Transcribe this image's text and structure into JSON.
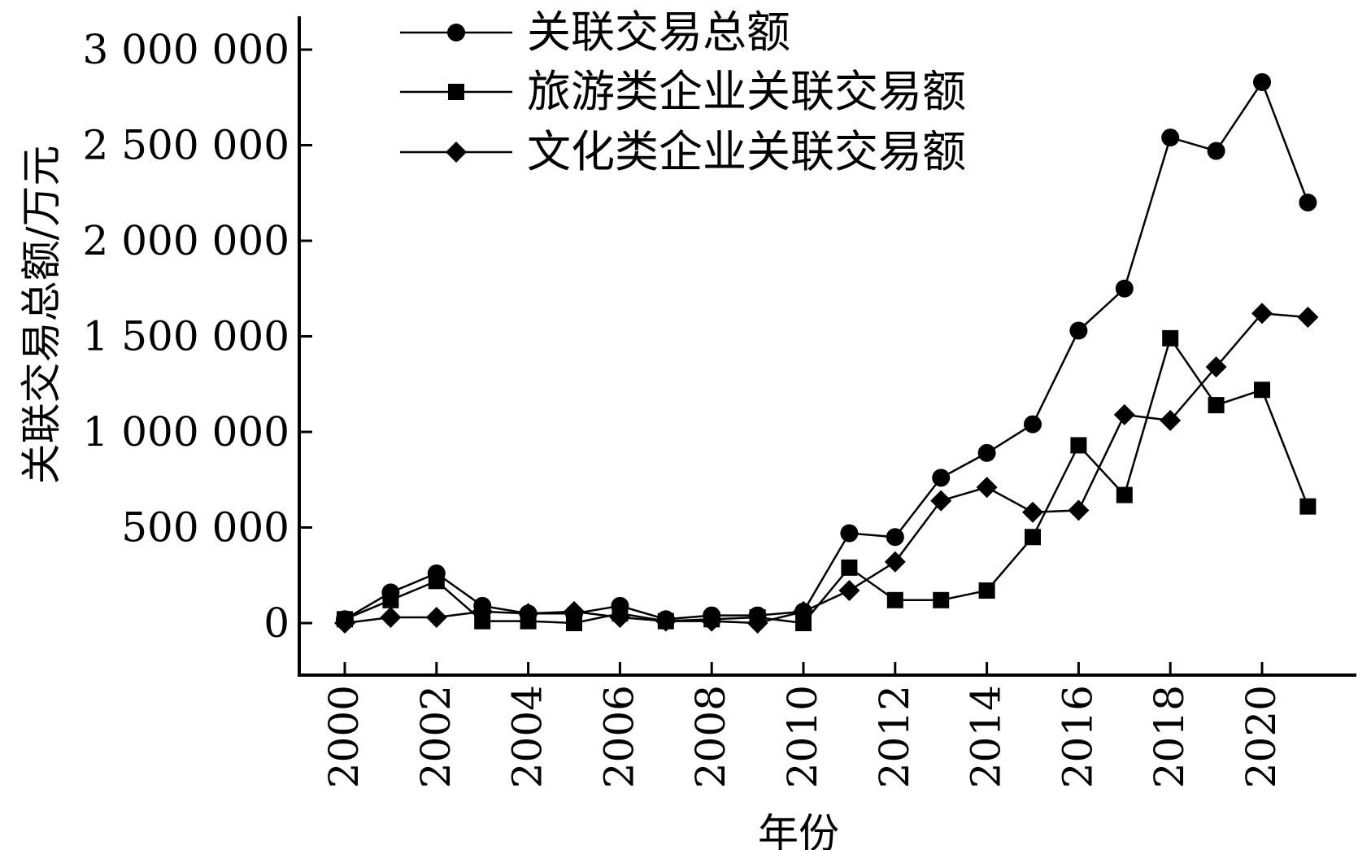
{
  "chart_data": {
    "type": "line",
    "title": "",
    "xlabel": "年份",
    "ylabel": "关联交易总额/万元",
    "x": [
      2000,
      2001,
      2002,
      2003,
      2004,
      2005,
      2006,
      2007,
      2008,
      2009,
      2010,
      2011,
      2012,
      2013,
      2014,
      2015,
      2016,
      2017,
      2018,
      2019,
      2020,
      2021
    ],
    "xticks": [
      "2000",
      "2002",
      "2004",
      "2006",
      "2008",
      "2010",
      "2012",
      "2014",
      "2016",
      "2018",
      "2020"
    ],
    "xlim": [
      2000,
      2022
    ],
    "ylim": [
      -250000,
      3150000
    ],
    "yticks": [
      {
        "value": 0,
        "label": "0"
      },
      {
        "value": 500000,
        "label": "500 000"
      },
      {
        "value": 1000000,
        "label": "1 000 000"
      },
      {
        "value": 1500000,
        "label": "1 500 000"
      },
      {
        "value": 2000000,
        "label": "2 000 000"
      },
      {
        "value": 2500000,
        "label": "2 500 000"
      },
      {
        "value": 3000000,
        "label": "3 000 000"
      }
    ],
    "grid": false,
    "legend_position": "top",
    "series": [
      {
        "name": "关联交易总额",
        "marker": "circle",
        "color": "#000000",
        "values": [
          20000,
          160000,
          260000,
          90000,
          50000,
          50000,
          90000,
          20000,
          40000,
          40000,
          60000,
          470000,
          450000,
          760000,
          890000,
          1040000,
          1530000,
          1750000,
          2540000,
          2470000,
          2830000,
          2200000
        ]
      },
      {
        "name": "旅游类企业关联交易额",
        "marker": "square",
        "color": "#000000",
        "values": [
          20000,
          120000,
          220000,
          10000,
          10000,
          0,
          50000,
          10000,
          20000,
          30000,
          0,
          290000,
          120000,
          120000,
          170000,
          450000,
          930000,
          670000,
          1490000,
          1140000,
          1220000,
          610000
        ]
      },
      {
        "name": "文化类企业关联交易额",
        "marker": "diamond",
        "color": "#000000",
        "values": [
          0,
          30000,
          30000,
          60000,
          50000,
          60000,
          30000,
          10000,
          10000,
          0,
          60000,
          170000,
          320000,
          640000,
          710000,
          580000,
          590000,
          1090000,
          1060000,
          1340000,
          1620000,
          1600000
        ]
      }
    ]
  }
}
